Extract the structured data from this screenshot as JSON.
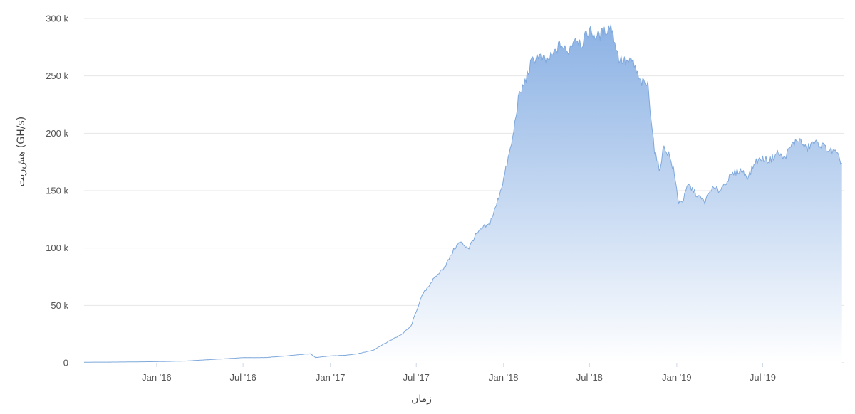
{
  "chart_data": {
    "type": "area",
    "title": "",
    "xlabel": "زمان",
    "ylabel": "هش‌ریت (GH/s)",
    "ylim": [
      0,
      300000
    ],
    "xlim": [
      "2015-08-01",
      "2019-12-20"
    ],
    "grid": true,
    "legend": "none",
    "y_ticks": [
      {
        "value": 0,
        "label": "0"
      },
      {
        "value": 50000,
        "label": "50 k"
      },
      {
        "value": 100000,
        "label": "100 k"
      },
      {
        "value": 150000,
        "label": "150 k"
      },
      {
        "value": 200000,
        "label": "200 k"
      },
      {
        "value": 250000,
        "label": "250 k"
      },
      {
        "value": 300000,
        "label": "300 k"
      }
    ],
    "x_ticks": [
      {
        "value": "2016-01-01",
        "label": "Jan '16"
      },
      {
        "value": "2016-07-01",
        "label": "Jul '16"
      },
      {
        "value": "2017-01-01",
        "label": "Jan '17"
      },
      {
        "value": "2017-07-01",
        "label": "Jul '17"
      },
      {
        "value": "2018-01-01",
        "label": "Jan '18"
      },
      {
        "value": "2018-07-01",
        "label": "Jul '18"
      },
      {
        "value": "2019-01-01",
        "label": "Jan '19"
      },
      {
        "value": "2019-07-01",
        "label": "Jul '19"
      }
    ],
    "colors": {
      "line": "#7fa8dc",
      "fill_top": "#86aee3",
      "fill_bottom": "#ffffff"
    },
    "series": [
      {
        "x": [
          "2015-08-01",
          "2015-10-01",
          "2016-01-01",
          "2016-03-01",
          "2016-05-01",
          "2016-07-01",
          "2016-08-15",
          "2016-10-01",
          "2016-11-20",
          "2016-12-01",
          "2017-01-01",
          "2017-02-01",
          "2017-03-01",
          "2017-04-01",
          "2017-05-01",
          "2017-06-01",
          "2017-06-20",
          "2017-07-01",
          "2017-07-15",
          "2017-08-01",
          "2017-09-01",
          "2017-09-20",
          "2017-10-01",
          "2017-10-20",
          "2017-11-01",
          "2017-11-20",
          "2017-12-01",
          "2017-12-15",
          "2018-01-01",
          "2018-01-20",
          "2018-02-01",
          "2018-02-15",
          "2018-03-01",
          "2018-03-15",
          "2018-04-01",
          "2018-04-15",
          "2018-05-01",
          "2018-05-15",
          "2018-06-01",
          "2018-06-15",
          "2018-07-01",
          "2018-07-15",
          "2018-08-01",
          "2018-08-15",
          "2018-09-01",
          "2018-09-15",
          "2018-10-01",
          "2018-10-15",
          "2018-11-01",
          "2018-11-15",
          "2018-11-25",
          "2018-12-05",
          "2018-12-15",
          "2018-12-25",
          "2019-01-05",
          "2019-01-15",
          "2019-01-25",
          "2019-02-05",
          "2019-02-15",
          "2019-03-01",
          "2019-03-15",
          "2019-04-01",
          "2019-04-15",
          "2019-05-01",
          "2019-05-15",
          "2019-06-01",
          "2019-06-15",
          "2019-07-01",
          "2019-07-15",
          "2019-08-01",
          "2019-08-15",
          "2019-09-01",
          "2019-09-15",
          "2019-10-01",
          "2019-10-15",
          "2019-11-01",
          "2019-11-15",
          "2019-12-01",
          "2019-12-15"
        ],
        "y": [
          500,
          600,
          1000,
          1500,
          3000,
          4500,
          4500,
          6000,
          8000,
          4500,
          6000,
          6500,
          8000,
          11000,
          18000,
          25000,
          32000,
          45000,
          60000,
          70000,
          85000,
          100000,
          105000,
          100000,
          110000,
          118000,
          120000,
          135000,
          160000,
          195000,
          230000,
          245000,
          262000,
          268000,
          262000,
          268000,
          278000,
          270000,
          284000,
          278000,
          290000,
          284000,
          288000,
          294000,
          265000,
          262000,
          262000,
          245000,
          242000,
          185000,
          168000,
          188000,
          182000,
          168000,
          140000,
          142000,
          155000,
          150000,
          145000,
          140000,
          152000,
          150000,
          158000,
          165000,
          168000,
          162000,
          175000,
          178000,
          176000,
          183000,
          178000,
          190000,
          195000,
          186000,
          192000,
          190000,
          186000,
          183000,
          174000
        ]
      }
    ]
  }
}
